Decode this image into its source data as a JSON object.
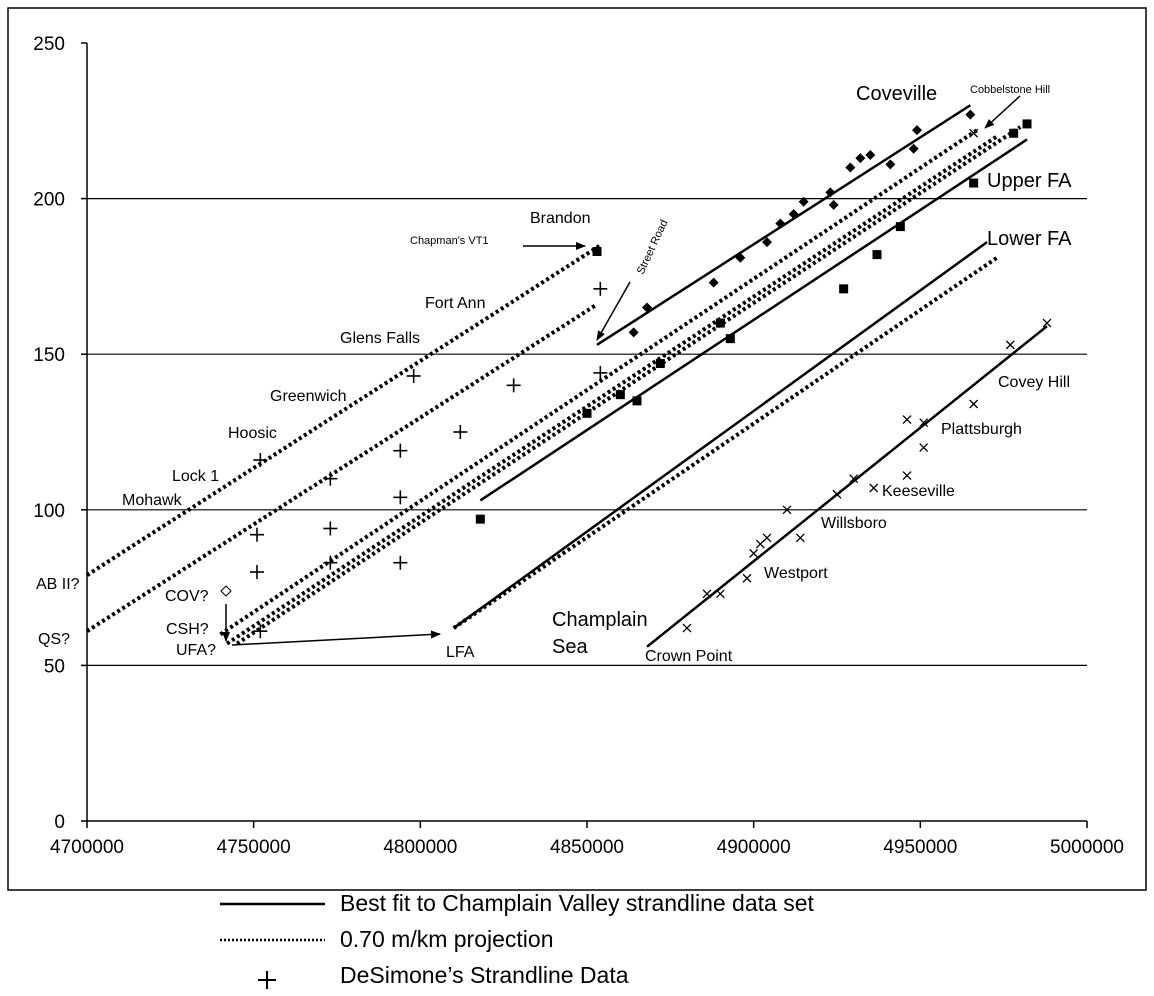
{
  "chart_data": {
    "type": "scatter",
    "xlim": [
      4700000,
      5000000
    ],
    "ylim": [
      0,
      250
    ],
    "x_ticks": [
      "4700000",
      "4750000",
      "4800000",
      "4850000",
      "4900000",
      "4950000",
      "5000000"
    ],
    "y_ticks": [
      "0",
      "50",
      "100",
      "150",
      "200",
      "250"
    ],
    "gridlines_y": [
      50,
      100,
      150,
      200
    ],
    "legend": [
      {
        "style": "solid",
        "label": "Best fit to Champlain Valley strandline data set"
      },
      {
        "style": "dotted",
        "label": "0.70 m/km projection"
      },
      {
        "style": "plus",
        "label": "DeSimone’s Strandline Data"
      }
    ],
    "lines": [
      {
        "style": "solid",
        "x": [
          4853000,
          4965000
        ],
        "y": [
          153,
          230
        ]
      },
      {
        "style": "solid",
        "x": [
          4818000,
          4982000
        ],
        "y": [
          103,
          219
        ]
      },
      {
        "style": "solid",
        "x": [
          4810000,
          4970000
        ],
        "y": [
          62,
          186
        ]
      },
      {
        "style": "solid",
        "x": [
          4868000,
          4988000
        ],
        "y": [
          56,
          159
        ]
      },
      {
        "style": "dotted",
        "x": [
          4700000,
          4854000
        ],
        "y": [
          79,
          185
        ]
      },
      {
        "style": "dotted",
        "x": [
          4700000,
          4853000
        ],
        "y": [
          61,
          166
        ]
      },
      {
        "style": "dotted",
        "x": [
          4740000,
          4967000
        ],
        "y": [
          60,
          222
        ]
      },
      {
        "style": "dotted",
        "x": [
          4742000,
          4973000
        ],
        "y": [
          57,
          220
        ]
      },
      {
        "style": "dotted",
        "x": [
          4745000,
          4980000
        ],
        "y": [
          57,
          223
        ]
      },
      {
        "style": "dotted",
        "x": [
          4810000,
          4973000
        ],
        "y": [
          62,
          181
        ]
      }
    ],
    "series": [
      {
        "marker": "plus",
        "points": [
          [
            4752000,
            116
          ],
          [
            4751000,
            92
          ],
          [
            4751000,
            80
          ],
          [
            4752000,
            61
          ],
          [
            4773000,
            110
          ],
          [
            4773000,
            94
          ],
          [
            4773000,
            83
          ],
          [
            4794000,
            119
          ],
          [
            4794000,
            104
          ],
          [
            4794000,
            83
          ],
          [
            4798000,
            143
          ],
          [
            4812000,
            125
          ],
          [
            4828000,
            140
          ],
          [
            4854000,
            171
          ],
          [
            4854000,
            144
          ]
        ]
      },
      {
        "marker": "diamond",
        "points": [
          [
            4888000,
            173
          ],
          [
            4896000,
            181
          ],
          [
            4904000,
            186
          ],
          [
            4908000,
            192
          ],
          [
            4912000,
            195
          ],
          [
            4915000,
            199
          ],
          [
            4923000,
            202
          ],
          [
            4924000,
            198
          ],
          [
            4929000,
            210
          ],
          [
            4932000,
            213
          ],
          [
            4935000,
            214
          ],
          [
            4941000,
            211
          ],
          [
            4948000,
            216
          ],
          [
            4949000,
            222
          ],
          [
            4965000,
            227
          ],
          [
            4868000,
            165
          ],
          [
            4864000,
            157
          ]
        ]
      },
      {
        "marker": "square",
        "points": [
          [
            4818000,
            97
          ],
          [
            4850000,
            131
          ],
          [
            4860000,
            137
          ],
          [
            4865000,
            135
          ],
          [
            4872000,
            147
          ],
          [
            4890000,
            160
          ],
          [
            4893000,
            155
          ],
          [
            4927000,
            171
          ],
          [
            4937000,
            182
          ],
          [
            4944000,
            191
          ],
          [
            4966000,
            205
          ],
          [
            4978000,
            221
          ],
          [
            4982000,
            224
          ],
          [
            4853000,
            183
          ]
        ]
      },
      {
        "marker": "cross",
        "points": [
          [
            4880000,
            62
          ],
          [
            4886000,
            73
          ],
          [
            4890000,
            73
          ],
          [
            4898000,
            78
          ],
          [
            4900000,
            86
          ],
          [
            4902000,
            89
          ],
          [
            4904000,
            91
          ],
          [
            4910000,
            100
          ],
          [
            4914000,
            91
          ],
          [
            4925000,
            105
          ],
          [
            4930000,
            110
          ],
          [
            4936000,
            107
          ],
          [
            4946000,
            111
          ],
          [
            4946000,
            129
          ],
          [
            4951000,
            120
          ],
          [
            4951000,
            128
          ],
          [
            4966000,
            134
          ],
          [
            4966000,
            221
          ],
          [
            4977000,
            153
          ],
          [
            4988000,
            160
          ]
        ]
      }
    ],
    "annotations": {
      "brandon": "Brandon",
      "chapmans": "Chapman's VT1",
      "street_road": "Street Road",
      "fort_ann": "Fort Ann",
      "glens_falls": "Glens Falls",
      "greenwich": "Greenwich",
      "hoosic": "Hoosic",
      "lock1": "Lock 1",
      "mohawk": "Mohawk",
      "ab_ii": "AB II?",
      "cov": "COV?",
      "csh": "CSH?",
      "qs": "QS?",
      "ufa": "UFA?",
      "lfa": "LFA",
      "champlain": "Champlain",
      "sea": "Sea",
      "crown_point": "Crown Point",
      "westport": "Westport",
      "willsboro": "Willsboro",
      "keeseville": "Keeseville",
      "plattsburgh": "Plattsburgh",
      "covey_hill": "Covey Hill",
      "coveville": "Coveville",
      "cobblestone": "Cobbelstone Hill",
      "upper_fa": "Upper FA",
      "lower_fa": "Lower FA"
    }
  }
}
